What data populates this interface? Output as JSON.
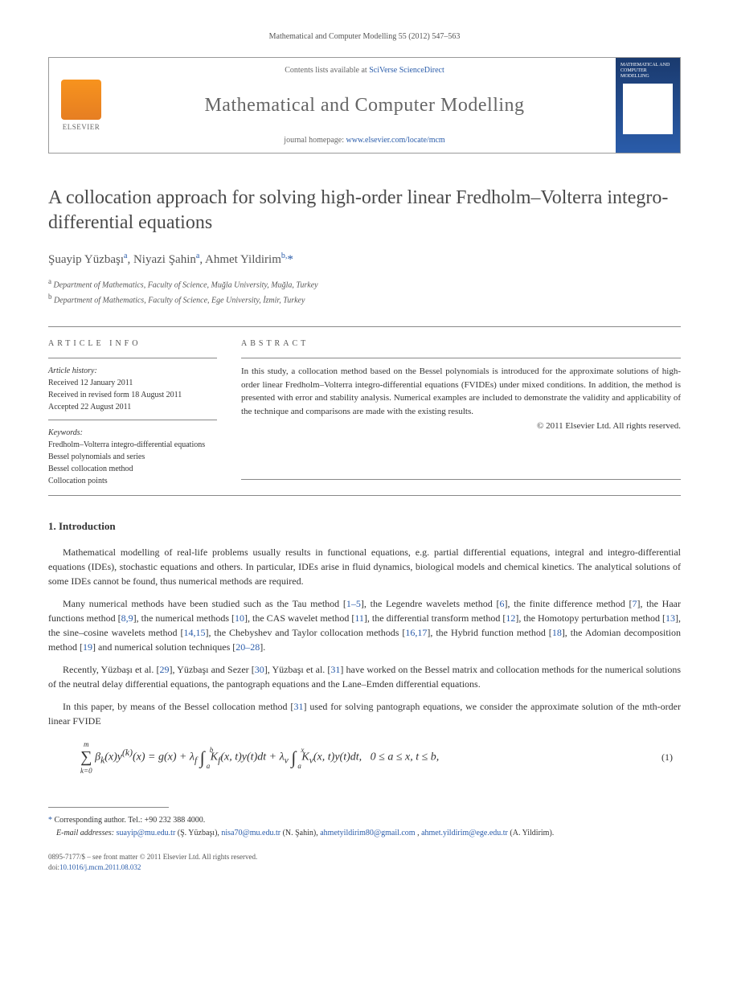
{
  "header": {
    "citation": "Mathematical and Computer Modelling 55 (2012) 547–563",
    "contents_prefix": "Contents lists available at ",
    "contents_link": "SciVerse ScienceDirect",
    "journal_name": "Mathematical and Computer Modelling",
    "homepage_prefix": "journal homepage: ",
    "homepage_link": "www.elsevier.com/locate/mcm",
    "elsevier_label": "ELSEVIER",
    "cover_title": "MATHEMATICAL AND COMPUTER MODELLING"
  },
  "paper": {
    "title": "A collocation approach for solving high-order linear Fredholm–Volterra integro-differential equations",
    "authors_html": "Şuayip Yüzbaşı<sup>a</sup>, Niyazi Şahin<sup>a</sup>, Ahmet Yildirim<sup>b,</sup><span class='corr'>*</span>",
    "affil_a": "Department of Mathematics, Faculty of Science, Muğla University, Muğla, Turkey",
    "affil_b": "Department of Mathematics, Faculty of Science, Ege University, İzmir, Turkey"
  },
  "article_info": {
    "label": "ARTICLE INFO",
    "history_label": "Article history:",
    "received": "Received 12 January 2011",
    "revised": "Received in revised form 18 August 2011",
    "accepted": "Accepted 22 August 2011",
    "keywords_label": "Keywords:",
    "keywords": [
      "Fredholm–Volterra integro-differential equations",
      "Bessel polynomials and series",
      "Bessel collocation method",
      "Collocation points"
    ]
  },
  "abstract": {
    "label": "ABSTRACT",
    "text": "In this study, a collocation method based on the Bessel polynomials is introduced for the approximate solutions of high-order linear Fredholm–Volterra integro-differential equations (FVIDEs) under mixed conditions. In addition, the method is presented with error and stability analysis. Numerical examples are included to demonstrate the validity and applicability of the technique and comparisons are made with the existing results.",
    "copyright": "© 2011 Elsevier Ltd. All rights reserved."
  },
  "intro": {
    "heading": "1. Introduction",
    "p1": "Mathematical modelling of real-life problems usually results in functional equations, e.g. partial differential equations, integral and integro-differential equations (IDEs), stochastic equations and others. In particular, IDEs arise in fluid dynamics, biological models and chemical kinetics. The analytical solutions of some IDEs cannot be found, thus numerical methods are required.",
    "p2_pre": "Many numerical methods have been studied such as the Tau method [",
    "p2_ref1": "1–5",
    "p2_mid1": "], the Legendre wavelets method [",
    "p2_ref2": "6",
    "p2_mid2": "], the finite difference method [",
    "p2_ref3": "7",
    "p2_mid3": "], the Haar functions method [",
    "p2_ref4": "8,9",
    "p2_mid4": "], the numerical methods [",
    "p2_ref5": "10",
    "p2_mid5": "], the CAS wavelet method [",
    "p2_ref6": "11",
    "p2_mid6": "], the differential transform method [",
    "p2_ref7": "12",
    "p2_mid7": "], the Homotopy perturbation method [",
    "p2_ref8": "13",
    "p2_mid8": "], the sine–cosine wavelets method [",
    "p2_ref9": "14,15",
    "p2_mid9": "], the Chebyshev and Taylor collocation methods [",
    "p2_ref10": "16,17",
    "p2_mid10": "], the Hybrid function method [",
    "p2_ref11": "18",
    "p2_mid11": "], the Adomian decomposition method [",
    "p2_ref12": "19",
    "p2_mid12": "] and numerical solution techniques [",
    "p2_ref13": "20–28",
    "p2_post": "].",
    "p3_pre": "Recently, Yüzbaşı et al. [",
    "p3_ref1": "29",
    "p3_mid1": "], Yüzbaşı and Sezer [",
    "p3_ref2": "30",
    "p3_mid2": "], Yüzbaşı et al. [",
    "p3_ref3": "31",
    "p3_post": "]  have worked on the Bessel matrix and collocation methods for the numerical solutions of the neutral delay differential equations, the pantograph equations and the Lane–Emden differential equations.",
    "p4_pre": "In this paper, by means of the Bessel collocation method [",
    "p4_ref": "31",
    "p4_post": "] used for solving pantograph equations, we consider the approximate solution of the mth-order linear FVIDE"
  },
  "equation": {
    "tex": "∑ βₖ(x)y⁽ᵏ⁾(x) = g(x) + λf ∫ₐᵇ Kf(x,t)y(t)dt + λᵥ ∫ₐˣ Kᵥ(x,t)y(t)dt,   0 ≤ a ≤ x, t ≤ b,",
    "number": "(1)"
  },
  "footnotes": {
    "corr_label": "Corresponding author. Tel.: +90 232 388 4000.",
    "email_label": "E-mail addresses:",
    "emails": [
      {
        "addr": "suayip@mu.edu.tr",
        "who": "(Ş. Yüzbaşı)"
      },
      {
        "addr": "nisa70@mu.edu.tr",
        "who": "(N. Şahin)"
      },
      {
        "addr": "ahmetyildirim80@gmail.com",
        "who": ""
      },
      {
        "addr": "ahmet.yildirim@ege.edu.tr",
        "who": "(A. Yildirim)."
      }
    ]
  },
  "bottom": {
    "issn": "0895-7177/$ – see front matter © 2011 Elsevier Ltd. All rights reserved.",
    "doi_label": "doi:",
    "doi": "10.1016/j.mcm.2011.08.032"
  }
}
